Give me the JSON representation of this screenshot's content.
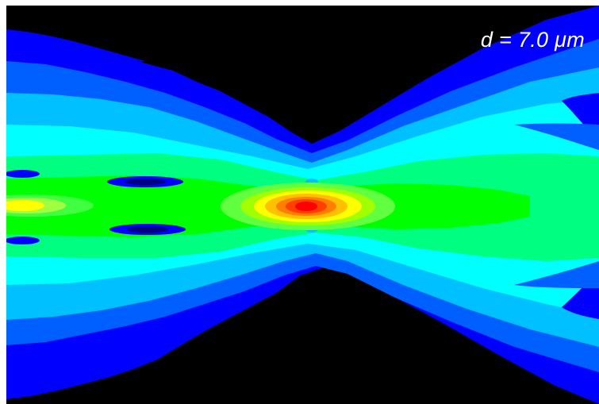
{
  "figure": {
    "annotation": "d = 7.0 μm",
    "background_color": "#000000",
    "colormap": [
      "#0000ff",
      "#0060ff",
      "#00c0ff",
      "#00ffff",
      "#00ff80",
      "#00ff00",
      "#ffff00",
      "#ff8000",
      "#ff0000"
    ]
  }
}
